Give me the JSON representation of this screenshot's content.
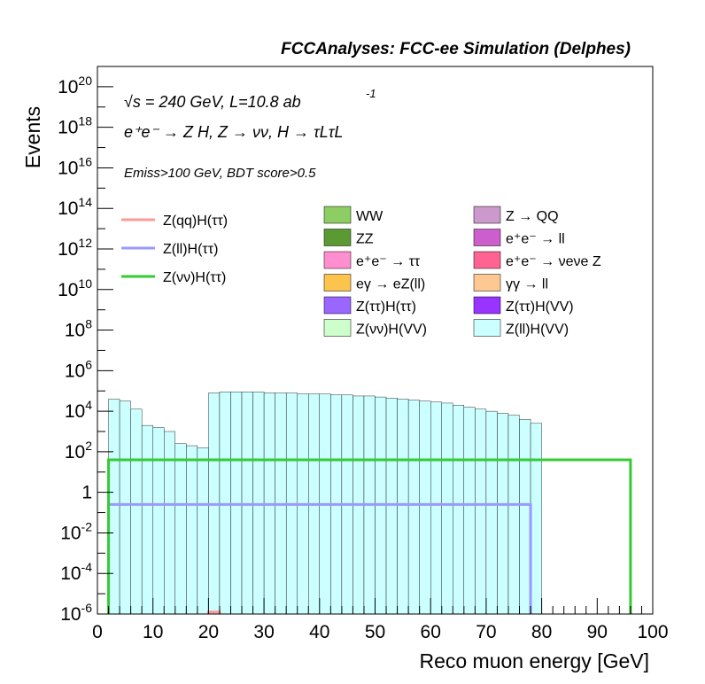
{
  "header": {
    "title": "FCCAnalyses: FCC-ee Simulation (Delphes)"
  },
  "annotations": {
    "energy": "√s = 240 GeV, L=10.8 ab",
    "energy_exp": "-1",
    "process": "e⁺e⁻ → Z H, Z → νν, H → τLτL",
    "cuts": "Emiss>100 GeV, BDT score>0.5"
  },
  "chart_data": {
    "type": "area",
    "title": "FCCAnalyses: FCC-ee Simulation (Delphes)",
    "xlabel": "Reco muon energy [GeV]",
    "ylabel": "Events",
    "xlim": [
      0,
      100
    ],
    "ylim": [
      1e-06,
      1e+21
    ],
    "log_y": true,
    "grid": false,
    "legend_position": "upper center",
    "x_ticks": [
      "0",
      "10",
      "20",
      "30",
      "40",
      "50",
      "60",
      "70",
      "80",
      "90",
      "100"
    ],
    "y_ticks": [
      "10^-6",
      "10^-4",
      "10^-2",
      "1",
      "10^2",
      "10^4",
      "10^6",
      "10^8",
      "10^10",
      "10^12",
      "10^14",
      "10^16",
      "10^18",
      "10^20"
    ],
    "y_ticks_exp": [
      -6,
      -4,
      -2,
      0,
      2,
      4,
      6,
      8,
      10,
      12,
      14,
      16,
      18,
      20
    ],
    "bin_width": 2,
    "bin_edges_start": 2,
    "stack_top_log10": [
      4.6,
      4.5,
      4.1,
      3.3,
      3.2,
      3.0,
      2.4,
      2.3,
      2.2,
      4.9,
      4.95,
      4.95,
      4.95,
      4.95,
      4.9,
      4.9,
      4.9,
      4.85,
      4.85,
      4.85,
      4.8,
      4.8,
      4.75,
      4.75,
      4.7,
      4.65,
      4.6,
      4.55,
      4.5,
      4.45,
      4.4,
      4.3,
      4.2,
      4.1,
      4.0,
      3.9,
      3.8,
      3.6,
      3.4
    ],
    "series": [
      {
        "name": "Z(νν)H(VV)",
        "color": "#ccffcc"
      },
      {
        "name": "γγ → ll",
        "color": "#fdc891"
      },
      {
        "name": "eγ → eZ(ll)",
        "color": "#fdc44d"
      },
      {
        "name": "e⁺e⁻ → νeνe Z",
        "color": "#ff6392"
      },
      {
        "name": "ZZ",
        "color": "#5b9a32"
      },
      {
        "name": "WW",
        "color": "#8cce63"
      },
      {
        "name": "e⁺e⁻ → ττ",
        "color": "#ff8ed0"
      },
      {
        "name": "Z → QQ",
        "color": "#cc99cc"
      },
      {
        "name": "e⁺e⁻ → ll",
        "color": "#cc5fcc"
      },
      {
        "name": "Z(ττ)H(ττ)",
        "color": "#9966ff"
      },
      {
        "name": "Z(ττ)H(VV)",
        "color": "#9933ff"
      },
      {
        "name": "Z(ll)H(VV)",
        "color": "#ccffff"
      }
    ],
    "signal_lines": [
      {
        "name": "Z(qq)H(ττ)",
        "color": "#ff9999",
        "x_range": [
          20,
          22
        ]
      },
      {
        "name": "Z(ll)H(ττ)",
        "color": "#9999ff",
        "x_range": [
          2,
          78
        ]
      },
      {
        "name": "Z(νν)H(ττ)",
        "color": "#33cc33",
        "x_range": [
          2,
          96
        ]
      }
    ]
  }
}
